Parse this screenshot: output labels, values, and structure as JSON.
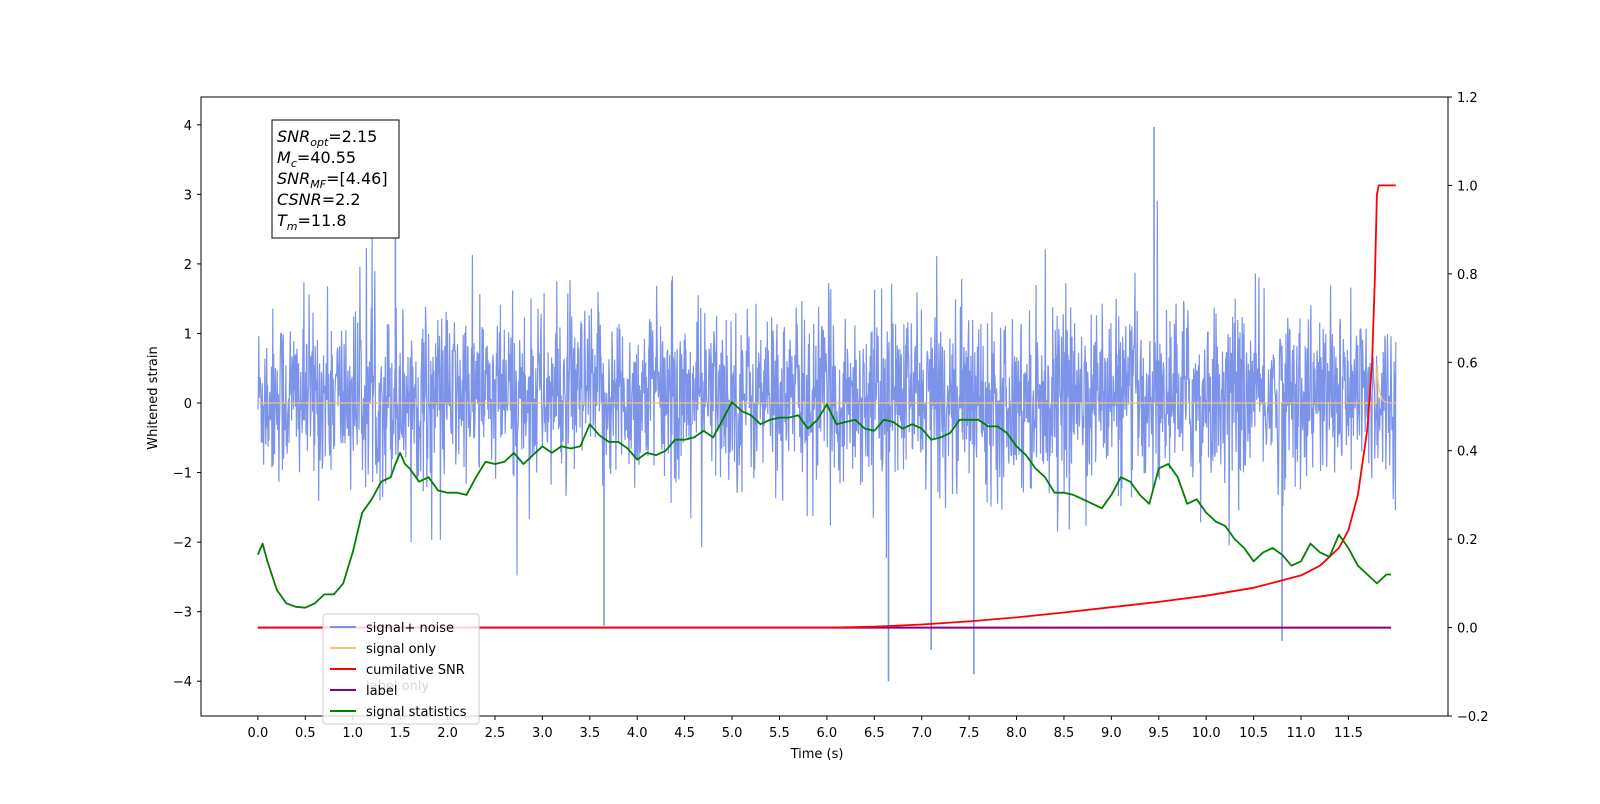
{
  "chart_data": {
    "type": "line",
    "xlabel": "Time (s)",
    "ylabel": "Whitened strain",
    "xlim": [
      -0.6,
      12.55
    ],
    "ylim_left": [
      -4.5,
      4.4
    ],
    "ylim_right": [
      -0.2,
      1.2
    ],
    "x_ticks": [
      "0.0",
      "0.5",
      "1.0",
      "1.5",
      "2.0",
      "2.5",
      "3.0",
      "3.5",
      "4.0",
      "4.5",
      "5.0",
      "5.5",
      "6.0",
      "6.5",
      "7.0",
      "7.5",
      "8.0",
      "8.5",
      "9.0",
      "9.5",
      "10.0",
      "10.5",
      "11.0",
      "11.5"
    ],
    "y_ticks_left": [
      "4",
      "3",
      "2",
      "1",
      "0",
      "−1",
      "−2",
      "−3",
      "−4"
    ],
    "y_ticks_right": [
      "1.2",
      "1.0",
      "0.8",
      "0.6",
      "0.4",
      "0.2",
      "0.0",
      "−0.2"
    ],
    "info_box": [
      {
        "sym": "SNR",
        "sub": "opt",
        "val": "=2.15"
      },
      {
        "sym": "M",
        "sub": "c",
        "val": "=40.55"
      },
      {
        "sym": "SNR",
        "sub": "MF",
        "val": "=[4.46]"
      },
      {
        "sym": "CSNR",
        "sub": "",
        "val": "=2.2"
      },
      {
        "sym": "T",
        "sub": "m",
        "val": "=11.8"
      }
    ],
    "legend": [
      "signal+ noise",
      "signal only",
      "cumilative SNR",
      "label",
      "signal statistics"
    ],
    "legend_hidden_label": "label only",
    "legend_location": "lower left",
    "series": [
      {
        "name": "signal+ noise",
        "axis": "left",
        "color": "#7b93e8",
        "kind": "noise",
        "x_range": [
          0.0,
          12.0
        ],
        "typical_range": [
          -1.4,
          1.6
        ],
        "spikes": [
          [
            9.45,
            3.97
          ],
          [
            6.65,
            -4.0
          ],
          [
            7.55,
            -3.9
          ],
          [
            7.1,
            -3.55
          ],
          [
            10.8,
            -3.42
          ],
          [
            1.45,
            3.3
          ],
          [
            3.65,
            -3.2
          ]
        ]
      },
      {
        "name": "signal only",
        "axis": "left",
        "color": "#f5c27a",
        "kind": "chirp",
        "x_range": [
          0.0,
          12.0
        ],
        "merger_time": 11.8,
        "peak_amplitude": 0.55
      },
      {
        "name": "cumilative SNR",
        "axis": "right",
        "color": "#ff0000",
        "x": [
          0.0,
          5.5,
          6.0,
          6.5,
          7.0,
          7.5,
          8.0,
          8.5,
          9.0,
          9.5,
          10.0,
          10.5,
          11.0,
          11.2,
          11.4,
          11.5,
          11.6,
          11.7,
          11.75,
          11.78,
          11.8,
          11.82,
          11.85,
          12.0
        ],
        "values": [
          0.0,
          0.0,
          0.0,
          0.002,
          0.007,
          0.014,
          0.023,
          0.034,
          0.046,
          0.058,
          0.072,
          0.09,
          0.118,
          0.14,
          0.18,
          0.22,
          0.3,
          0.45,
          0.6,
          0.8,
          0.98,
          1.0,
          1.0,
          1.0
        ]
      },
      {
        "name": "label",
        "axis": "right",
        "color": "#800080",
        "x": [
          0.0,
          11.95
        ],
        "values": [
          0.0,
          0.0
        ]
      },
      {
        "name": "signal statistics",
        "axis": "right",
        "color": "#008000",
        "x": [
          0.0,
          0.05,
          0.1,
          0.2,
          0.3,
          0.4,
          0.5,
          0.6,
          0.7,
          0.8,
          0.9,
          1.0,
          1.1,
          1.2,
          1.3,
          1.4,
          1.45,
          1.5,
          1.55,
          1.6,
          1.7,
          1.8,
          1.9,
          2.0,
          2.1,
          2.2,
          2.3,
          2.4,
          2.5,
          2.6,
          2.7,
          2.8,
          2.9,
          3.0,
          3.1,
          3.2,
          3.3,
          3.4,
          3.5,
          3.6,
          3.7,
          3.8,
          3.9,
          4.0,
          4.1,
          4.2,
          4.3,
          4.4,
          4.5,
          4.6,
          4.7,
          4.8,
          4.9,
          5.0,
          5.1,
          5.2,
          5.3,
          5.4,
          5.5,
          5.6,
          5.7,
          5.8,
          5.9,
          6.0,
          6.1,
          6.2,
          6.3,
          6.4,
          6.5,
          6.6,
          6.7,
          6.8,
          6.9,
          7.0,
          7.1,
          7.2,
          7.3,
          7.4,
          7.5,
          7.6,
          7.7,
          7.8,
          7.9,
          8.0,
          8.1,
          8.2,
          8.3,
          8.4,
          8.5,
          8.6,
          8.7,
          8.8,
          8.9,
          9.0,
          9.1,
          9.2,
          9.3,
          9.4,
          9.5,
          9.6,
          9.7,
          9.8,
          9.9,
          10.0,
          10.1,
          10.2,
          10.3,
          10.4,
          10.5,
          10.6,
          10.7,
          10.8,
          10.9,
          11.0,
          11.1,
          11.2,
          11.3,
          11.4,
          11.5,
          11.6,
          11.7,
          11.8,
          11.9,
          11.95
        ],
        "values": [
          0.165,
          0.19,
          0.15,
          0.085,
          0.055,
          0.047,
          0.045,
          0.055,
          0.075,
          0.075,
          0.1,
          0.17,
          0.26,
          0.29,
          0.33,
          0.34,
          0.37,
          0.395,
          0.37,
          0.36,
          0.33,
          0.34,
          0.31,
          0.305,
          0.305,
          0.3,
          0.34,
          0.375,
          0.37,
          0.375,
          0.395,
          0.37,
          0.39,
          0.41,
          0.395,
          0.41,
          0.405,
          0.41,
          0.46,
          0.435,
          0.42,
          0.42,
          0.405,
          0.38,
          0.395,
          0.39,
          0.4,
          0.425,
          0.425,
          0.43,
          0.445,
          0.43,
          0.47,
          0.51,
          0.49,
          0.48,
          0.46,
          0.47,
          0.475,
          0.475,
          0.48,
          0.45,
          0.47,
          0.505,
          0.46,
          0.465,
          0.47,
          0.45,
          0.445,
          0.47,
          0.465,
          0.45,
          0.46,
          0.45,
          0.425,
          0.43,
          0.44,
          0.47,
          0.47,
          0.47,
          0.455,
          0.455,
          0.44,
          0.41,
          0.39,
          0.36,
          0.34,
          0.305,
          0.305,
          0.3,
          0.29,
          0.28,
          0.27,
          0.3,
          0.34,
          0.33,
          0.3,
          0.28,
          0.36,
          0.37,
          0.34,
          0.28,
          0.29,
          0.26,
          0.24,
          0.23,
          0.2,
          0.18,
          0.15,
          0.17,
          0.18,
          0.165,
          0.14,
          0.15,
          0.19,
          0.17,
          0.16,
          0.21,
          0.18,
          0.14,
          0.12,
          0.1,
          0.12,
          0.12
        ]
      }
    ]
  }
}
